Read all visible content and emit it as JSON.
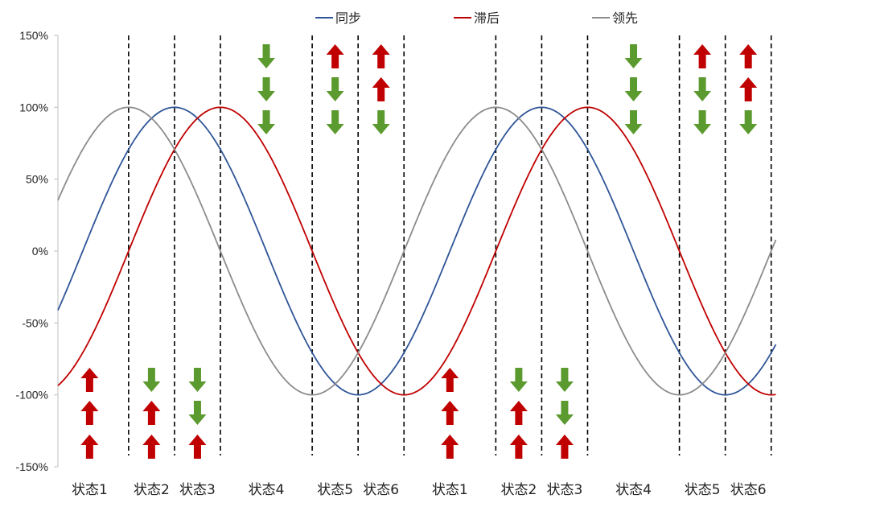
{
  "chart_data": {
    "type": "line",
    "title": "",
    "xlabel": "",
    "ylabel": "",
    "ylim": [
      -150,
      150
    ],
    "y_ticks": [
      "150%",
      "100%",
      "50%",
      "0%",
      "-50%",
      "-100%",
      "-150%"
    ],
    "grid": false,
    "legend_position": "top",
    "series": [
      {
        "name": "同步",
        "color": "#2f5597",
        "function": "sin",
        "amplitude": 100,
        "period": 8,
        "phase": 0
      },
      {
        "name": "滞后",
        "color": "#c00000",
        "function": "sin",
        "amplitude": 100,
        "period": 8,
        "phase": -1
      },
      {
        "name": "领先",
        "color": "#8c8c8c",
        "function": "sin",
        "amplitude": 100,
        "period": 8,
        "phase": 1
      }
    ],
    "x_range": [
      -0.54,
      15.1
    ],
    "phase_boundaries": [
      1.0,
      2.0,
      3.0,
      5.0,
      6.0,
      7.0,
      9.0,
      10.0,
      11.0,
      13.0,
      14.0,
      15.0
    ],
    "states": [
      {
        "label": "状态1",
        "arrows_bottom": [
          "up",
          "up",
          "up"
        ],
        "arrows_top": []
      },
      {
        "label": "状态2",
        "arrows_bottom": [
          "down",
          "up",
          "up"
        ],
        "arrows_top": []
      },
      {
        "label": "状态3",
        "arrows_bottom": [
          "down",
          "down",
          "up"
        ],
        "arrows_top": []
      },
      {
        "label": "状态4",
        "arrows_bottom": [],
        "arrows_top": [
          "down",
          "down",
          "down"
        ]
      },
      {
        "label": "状态5",
        "arrows_bottom": [],
        "arrows_top": [
          "up",
          "down",
          "down"
        ]
      },
      {
        "label": "状态6",
        "arrows_bottom": [],
        "arrows_top": [
          "up",
          "up",
          "down"
        ]
      },
      {
        "label": "状态1",
        "arrows_bottom": [
          "up",
          "up",
          "up"
        ],
        "arrows_top": []
      },
      {
        "label": "状态2",
        "arrows_bottom": [
          "down",
          "up",
          "up"
        ],
        "arrows_top": []
      },
      {
        "label": "状态3",
        "arrows_bottom": [
          "down",
          "down",
          "up"
        ],
        "arrows_top": []
      },
      {
        "label": "状态4",
        "arrows_bottom": [],
        "arrows_top": [
          "down",
          "down",
          "down"
        ]
      },
      {
        "label": "状态5",
        "arrows_bottom": [],
        "arrows_top": [
          "up",
          "down",
          "down"
        ]
      },
      {
        "label": "状态6",
        "arrows_bottom": [],
        "arrows_top": [
          "up",
          "up",
          "down"
        ]
      }
    ],
    "arrow_colors": {
      "up": "#c00000",
      "down": "#5b9a2e"
    }
  }
}
